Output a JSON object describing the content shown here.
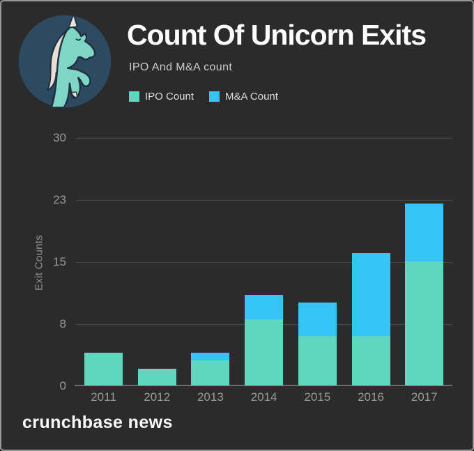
{
  "card": {
    "background": "#2b2b2b",
    "border_color": "#979797"
  },
  "branding": {
    "logo_icon": "crunchbase-unicorn-logo",
    "logo_colors": {
      "circle": "#2c4b63",
      "body": "#7ed7c5",
      "mane": "#e7ded4",
      "outline": "#223140"
    },
    "footer_wordmark": "crunchbase news"
  },
  "chart_data": {
    "type": "bar",
    "stacked": true,
    "title": "Count Of Unicorn Exits",
    "subtitle": "IPO And M&A count",
    "categories": [
      "2011",
      "2012",
      "2013",
      "2014",
      "2015",
      "2016",
      "2017"
    ],
    "series": [
      {
        "name": "IPO Count",
        "color": "#5fd6be",
        "values": [
          4,
          2,
          3,
          8,
          6,
          6,
          15
        ]
      },
      {
        "name": "M&A Count",
        "color": "#35c5f4",
        "values": [
          0,
          0,
          1,
          3,
          4,
          10,
          7
        ]
      }
    ],
    "xlabel": "",
    "ylabel": "Exit Counts",
    "ylim": [
      0,
      30
    ],
    "yticks": [
      0,
      8,
      15,
      23,
      30
    ],
    "grid": true,
    "legend_position": "top",
    "colors": {
      "gridline": "#474747",
      "axis_line": "#6f6f6f",
      "tick_label": "#9a9a9a",
      "axis_title": "#929292",
      "title": "#ffffff",
      "subtitle": "#cbcbcb",
      "legend_text": "#dedede"
    }
  }
}
